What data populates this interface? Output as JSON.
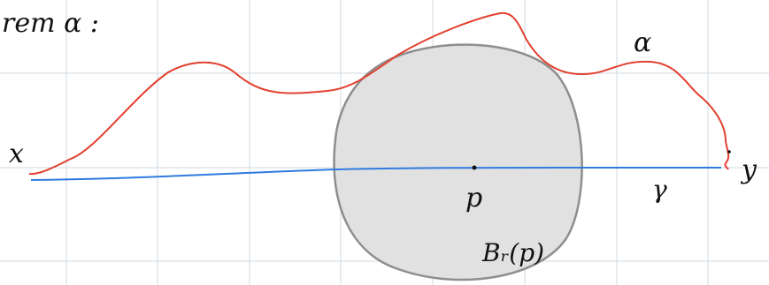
{
  "labels": {
    "heading": "rem α :",
    "point_x": "x",
    "point_y": "y",
    "point_p": "p",
    "curve_alpha": "α",
    "curve_gamma": "γ",
    "ball": "Bᵣ(p)"
  },
  "colors": {
    "grid": "#cfd8e0",
    "alpha_curve": "#e2402f",
    "gamma_curve": "#2f7be0",
    "ball_fill": "#e1e1e1",
    "ball_stroke": "#8e8e8e",
    "ink": "#111111"
  }
}
